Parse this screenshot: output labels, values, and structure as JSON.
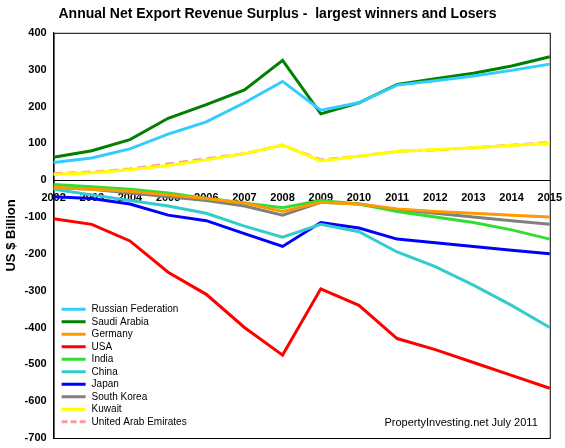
{
  "chart_data": {
    "type": "line",
    "title": "Annual Net Export Revenue Surplus -  largest winners and Losers",
    "y_label": "US $ Billion",
    "annotation": "PropertyInvesting.net July 2011",
    "categories": [
      2002,
      2003,
      2004,
      2005,
      2006,
      2007,
      2008,
      2009,
      2010,
      2011,
      2012,
      2013,
      2014,
      2015
    ],
    "series": [
      {
        "name": "Russian Federation",
        "color": "#33ccff",
        "marker": "none",
        "line_style": "solid",
        "values": [
          48,
          60,
          85,
          125,
          158,
          210,
          268,
          190,
          210,
          258,
          270,
          283,
          298,
          315
        ]
      },
      {
        "name": "Saudi Arabia",
        "color": "#008000",
        "marker": "none",
        "line_style": "solid",
        "values": [
          62,
          80,
          110,
          168,
          205,
          245,
          325,
          180,
          210,
          260,
          275,
          290,
          310,
          335
        ]
      },
      {
        "name": "Germany",
        "color": "#ff9900",
        "marker": "none",
        "line_style": "solid",
        "values": [
          -20,
          -25,
          -30,
          -40,
          -50,
          -62,
          -85,
          -60,
          -65,
          -78,
          -85,
          -90,
          -95,
          -100
        ]
      },
      {
        "name": "USA",
        "color": "#ff0000",
        "marker": "none",
        "line_style": "solid",
        "values": [
          -105,
          -120,
          -165,
          -250,
          -310,
          -400,
          -475,
          -295,
          -340,
          -430,
          -460,
          -495,
          -530,
          -565
        ]
      },
      {
        "name": "India",
        "color": "#33dd33",
        "marker": "none",
        "line_style": "solid",
        "values": [
          -12,
          -18,
          -25,
          -35,
          -50,
          -62,
          -75,
          -55,
          -65,
          -85,
          -100,
          -115,
          -135,
          -160
        ]
      },
      {
        "name": "China",
        "color": "#33cccc",
        "marker": "none",
        "line_style": "solid",
        "values": [
          -25,
          -40,
          -55,
          -70,
          -90,
          -125,
          -155,
          -120,
          -140,
          -195,
          -235,
          -285,
          -340,
          -400
        ]
      },
      {
        "name": "Japan",
        "color": "#0000ff",
        "marker": "none",
        "line_style": "solid",
        "values": [
          -45,
          -50,
          -65,
          -95,
          -110,
          -145,
          -180,
          -115,
          -130,
          -160,
          -170,
          -180,
          -190,
          -200
        ]
      },
      {
        "name": "South Korea",
        "color": "#808080",
        "marker": "none",
        "line_style": "solid",
        "values": [
          -20,
          -25,
          -35,
          -45,
          -55,
          -70,
          -95,
          -60,
          -65,
          -80,
          -90,
          -100,
          -110,
          -120
        ]
      },
      {
        "name": "Kuwait",
        "color": "#ffff00",
        "marker": "none",
        "line_style": "solid",
        "values": [
          15,
          20,
          28,
          40,
          55,
          72,
          95,
          52,
          65,
          78,
          83,
          88,
          94,
          100
        ]
      },
      {
        "name": "United Arab Emirates",
        "color": "#ff9999",
        "marker": "none",
        "line_style": "dashed",
        "values": [
          18,
          22,
          30,
          44,
          58,
          72,
          95,
          55,
          65,
          78,
          82,
          88,
          95,
          102
        ]
      }
    ],
    "ylim": [
      -700,
      400
    ],
    "yticks": [
      -700,
      -600,
      -500,
      -400,
      -300,
      -200,
      -100,
      0,
      100,
      200,
      300,
      400
    ],
    "grid": false,
    "legend": "lower left"
  }
}
